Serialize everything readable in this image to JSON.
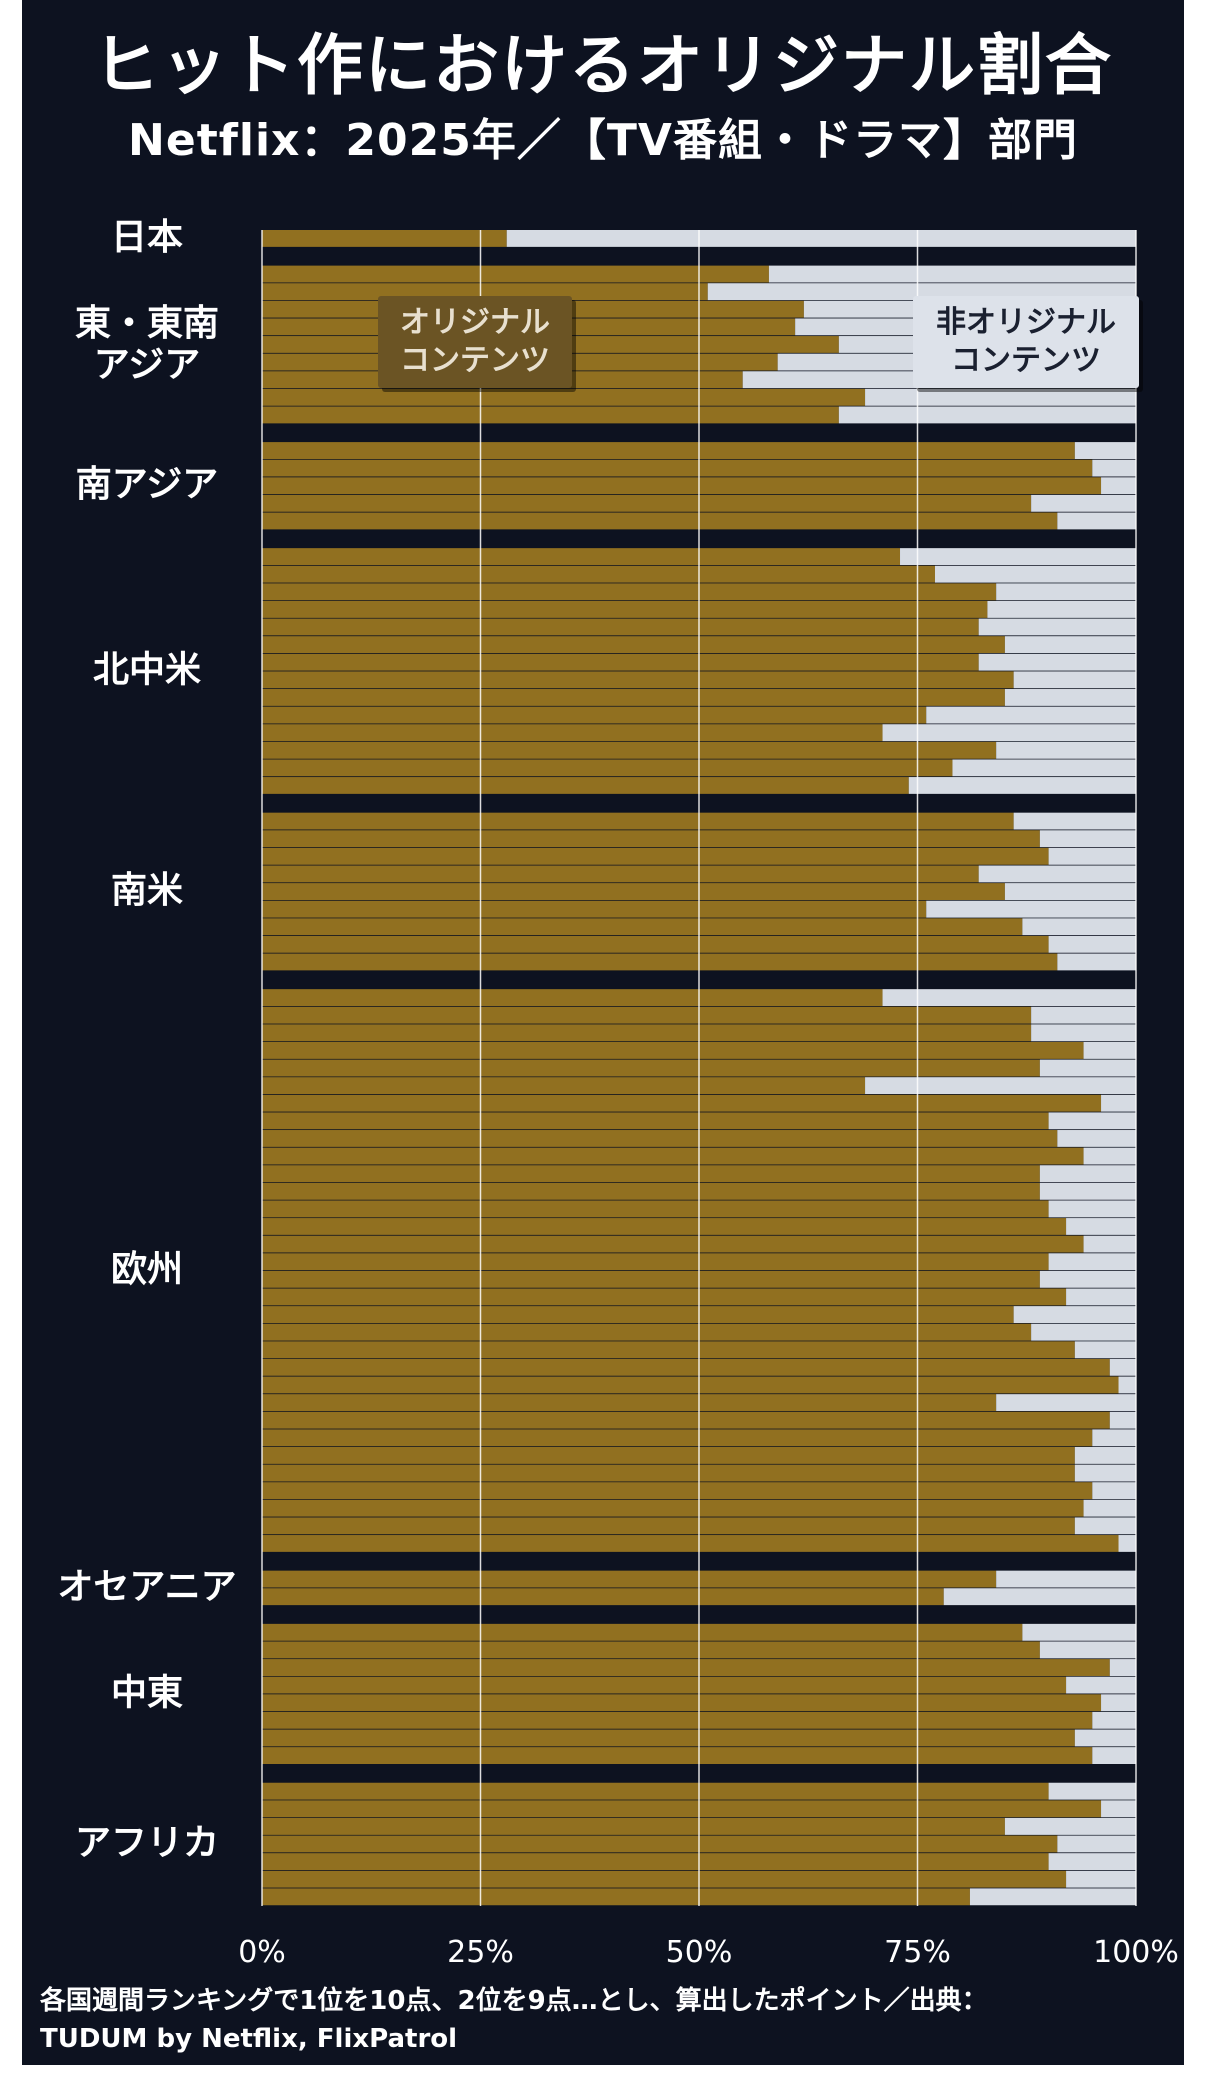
{
  "title": "ヒット作におけるオリジナル割合",
  "subtitle": "Netflix：2025年／【TV番組・ドラマ】部門",
  "legend": {
    "original": "オリジナル\nコンテンツ",
    "non_original": "非オリジナル\nコンテンツ"
  },
  "footnote": "各国週間ランキングで1位を10点、2位を9点…とし、算出したポイント／出典：\nTUDUM by Netflix, FlixPatrol",
  "colors": {
    "original": "#917020",
    "non_original": "#d6dbe3",
    "background": "#0d1220",
    "grid": "#ffffff"
  },
  "chart_data": {
    "type": "bar",
    "orientation": "horizontal",
    "stacked": true,
    "normalized": true,
    "xlim": [
      0,
      100
    ],
    "x_ticks": [
      "0%",
      "25%",
      "50%",
      "75%",
      "100%"
    ],
    "series": [
      {
        "name": "オリジナルコンテンツ"
      },
      {
        "name": "非オリジナルコンテンツ"
      }
    ],
    "groups": [
      {
        "label": "日本",
        "values": [
          28
        ]
      },
      {
        "label": "東・東南アジア",
        "values": [
          58,
          51,
          62,
          61,
          66,
          59,
          55,
          69,
          66
        ]
      },
      {
        "label": "南アジア",
        "values": [
          93,
          95,
          96,
          88,
          91
        ]
      },
      {
        "label": "北中米",
        "values": [
          73,
          77,
          84,
          83,
          82,
          85,
          82,
          86,
          85,
          76,
          71,
          84,
          79,
          74
        ]
      },
      {
        "label": "南米",
        "values": [
          86,
          89,
          90,
          82,
          85,
          76,
          87,
          90,
          91
        ]
      },
      {
        "label": "欧州",
        "values": [
          71,
          88,
          88,
          94,
          89,
          69,
          96,
          90,
          91,
          94,
          89,
          89,
          90,
          92,
          94,
          90,
          89,
          92,
          86,
          88,
          93,
          97,
          98,
          84,
          97,
          95,
          93,
          93,
          95,
          94,
          93,
          98
        ]
      },
      {
        "label": "オセアニア",
        "values": [
          84,
          78
        ]
      },
      {
        "label": "中東",
        "values": [
          87,
          89,
          97,
          92,
          96,
          95,
          93,
          95
        ]
      },
      {
        "label": "アフリカ",
        "values": [
          90,
          96,
          85,
          91,
          90,
          92,
          81
        ]
      }
    ]
  }
}
